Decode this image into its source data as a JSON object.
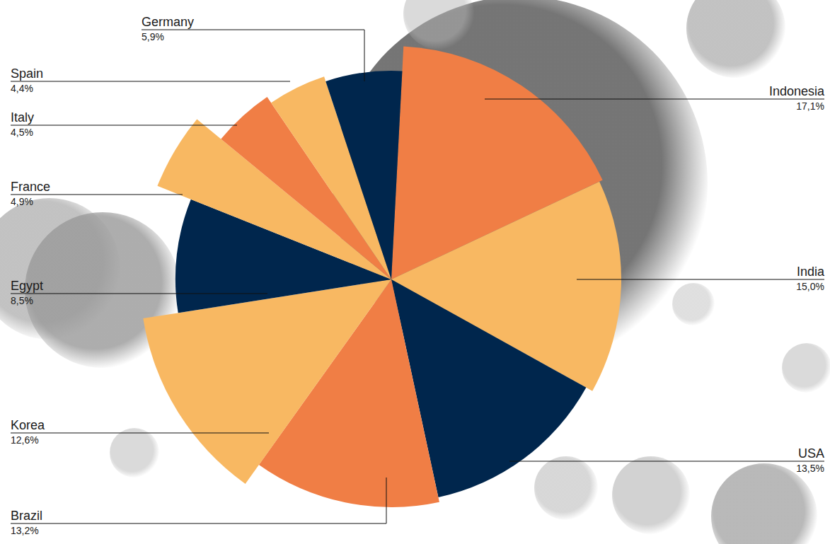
{
  "chart_data": {
    "type": "pie",
    "categories": [
      "Indonesia",
      "India",
      "USA",
      "Brazil",
      "Korea",
      "Egypt",
      "France",
      "Italy",
      "Spain",
      "Germany"
    ],
    "values": [
      17.1,
      15.0,
      13.5,
      13.2,
      12.6,
      8.5,
      4.9,
      4.5,
      4.4,
      5.9
    ],
    "value_labels": [
      "17,1%",
      "15,0%",
      "13,5%",
      "13,2%",
      "12,6%",
      "8,5%",
      "4,9%",
      "4,5%",
      "4,4%",
      "5,9%"
    ],
    "colors": [
      "#f07e45",
      "#f8b862",
      "#00264d",
      "#f07e45",
      "#f8b862",
      "#00264d",
      "#f8b862",
      "#f07e45",
      "#f8b862",
      "#00264d"
    ],
    "data_labels": true
  }
}
